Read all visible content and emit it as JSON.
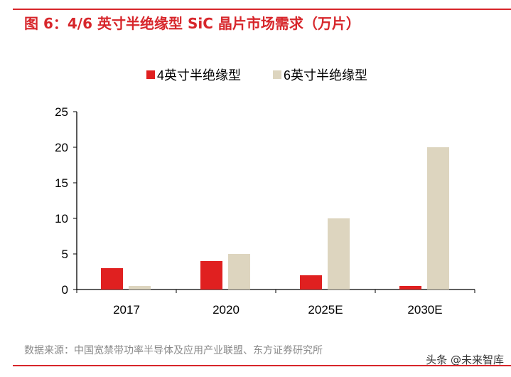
{
  "title": "图 6：4/6 英寸半绝缘型 SiC 晶片市场需求（万片）",
  "source": "数据来源：中国宽禁带功率半导体及应用产业联盟、东方证券研究所",
  "watermark": "头条 @未来智库",
  "chart_data": {
    "type": "bar",
    "categories": [
      "2017",
      "2020",
      "2025E",
      "2030E"
    ],
    "series": [
      {
        "name": "4英寸半绝缘型",
        "values": [
          3,
          4,
          2,
          0.5
        ],
        "color": "#e02020"
      },
      {
        "name": "6英寸半绝缘型",
        "values": [
          0.5,
          5,
          10,
          20
        ],
        "color": "#ddd5bf"
      }
    ],
    "yticks": [
      "0",
      "5",
      "10",
      "15",
      "20",
      "25"
    ],
    "ylim": [
      0,
      25
    ],
    "legend": "top",
    "grid": false
  }
}
